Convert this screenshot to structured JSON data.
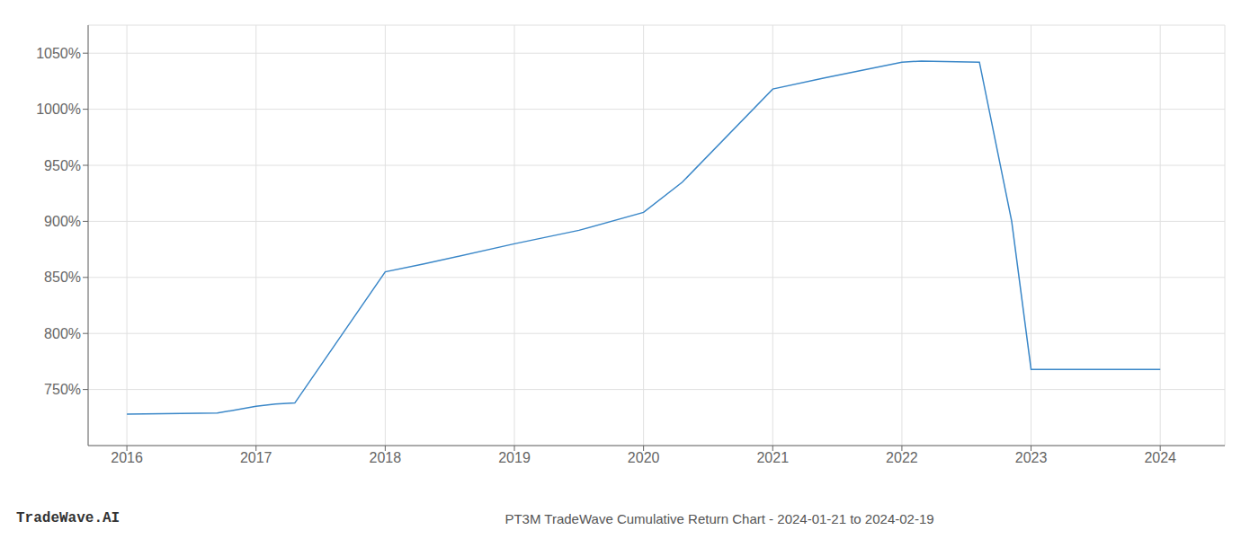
{
  "chart_data": {
    "type": "line",
    "title": "PT3M TradeWave Cumulative Return Chart - 2024-01-21 to 2024-02-19",
    "annotations": [
      "TradeWave.AI"
    ],
    "x": [
      2016.0,
      2016.7,
      2017.0,
      2017.15,
      2017.3,
      2018.0,
      2018.3,
      2019.0,
      2019.5,
      2020.0,
      2020.3,
      2021.0,
      2021.4,
      2022.0,
      2022.15,
      2022.6,
      2022.85,
      2023.0,
      2023.5,
      2024.0
    ],
    "values": [
      728,
      729,
      735,
      737,
      738,
      855,
      862,
      880,
      892,
      908,
      935,
      1018,
      1028,
      1042,
      1043,
      1042,
      900,
      768,
      768,
      768
    ],
    "color": "#3a87c8",
    "xlim": [
      2015.7,
      2024.5
    ],
    "ylim": [
      700,
      1075
    ],
    "xticks": [
      2016,
      2017,
      2018,
      2019,
      2020,
      2021,
      2022,
      2023,
      2024
    ],
    "yticks": [
      {
        "value": 750,
        "label": "750%"
      },
      {
        "value": 800,
        "label": "800%"
      },
      {
        "value": 850,
        "label": "850%"
      },
      {
        "value": 900,
        "label": "900%"
      },
      {
        "value": 950,
        "label": "950%"
      },
      {
        "value": 1000,
        "label": "1000%"
      },
      {
        "value": 1050,
        "label": "1050%"
      }
    ],
    "grid": true
  }
}
